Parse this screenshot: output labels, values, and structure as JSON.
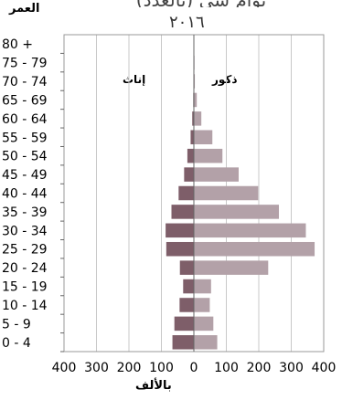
{
  "chart_data": {
    "type": "bar",
    "title": "بوام سي (بالعدد)",
    "year": "٢٠١٦",
    "ylabel": "العمر",
    "xlabel": "بالألف",
    "categories": [
      "0 - 4",
      "5 - 9",
      "10 - 14",
      "15 - 19",
      "20 - 24",
      "25 - 29",
      "30 - 34",
      "35 - 39",
      "40 - 44",
      "45 - 49",
      "50 - 54",
      "55 - 59",
      "60 - 64",
      "65 - 69",
      "70 - 74",
      "75 - 79",
      "80 +"
    ],
    "series": [
      {
        "name": "ذكور",
        "values": [
          72,
          60,
          49,
          53,
          229,
          372,
          345,
          262,
          198,
          138,
          88,
          57,
          23,
          9,
          3,
          2,
          1
        ]
      },
      {
        "name": "إناث",
        "values": [
          -66,
          -60,
          -44,
          -33,
          -43,
          -85,
          -87,
          -69,
          -47,
          -30,
          -20,
          -10,
          -5,
          -2,
          -1,
          -1,
          -1
        ]
      }
    ],
    "xticks": [
      "400",
      "300",
      "200",
      "100",
      "0",
      "100",
      "200",
      "300",
      "400"
    ],
    "xlim": [
      -400,
      400
    ],
    "grid": true,
    "colors": {
      "male": "#b3a1a8",
      "female": "#7e5e69"
    }
  }
}
